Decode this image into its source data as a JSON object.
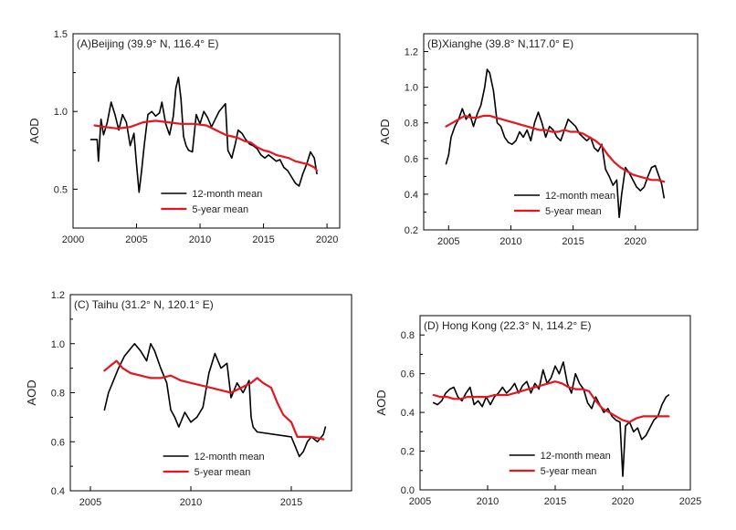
{
  "chart_data": [
    {
      "type": "line",
      "title": "(A)Beijing (39.9° N, 116.4° E)",
      "xlabel": "",
      "ylabel": "AOD",
      "xlim": [
        2000,
        2021
      ],
      "ylim": [
        0.25,
        1.5
      ],
      "xticks": [
        2000,
        2005,
        2010,
        2015,
        2020
      ],
      "yticks": [
        0.5,
        1.0,
        1.5
      ],
      "yticklabels": [
        "0.5",
        "1.0",
        "1.5"
      ],
      "legend": [
        "12-month mean",
        "5-year mean"
      ],
      "legend_position": "bottom-center",
      "series": [
        {
          "name": "12-month mean",
          "color": "#000000",
          "x": [
            2001.4,
            2001.9,
            2002.0,
            2002.2,
            2002.4,
            2002.7,
            2003.0,
            2003.3,
            2003.6,
            2003.9,
            2004.2,
            2004.5,
            2004.8,
            2005.0,
            2005.2,
            2005.4,
            2005.6,
            2005.9,
            2006.2,
            2006.5,
            2006.8,
            2007.0,
            2007.3,
            2007.6,
            2007.9,
            2008.1,
            2008.3,
            2008.5,
            2008.7,
            2008.9,
            2009.1,
            2009.4,
            2009.7,
            2010.0,
            2010.3,
            2010.6,
            2010.9,
            2011.2,
            2011.5,
            2011.8,
            2012.0,
            2012.2,
            2012.5,
            2012.8,
            2013.0,
            2013.3,
            2013.6,
            2013.9,
            2014.2,
            2014.5,
            2014.8,
            2015.1,
            2015.4,
            2015.7,
            2016.0,
            2016.3,
            2016.6,
            2016.9,
            2017.2,
            2017.5,
            2017.8,
            2018.1,
            2018.4,
            2018.7,
            2019.0,
            2019.2
          ],
          "y": [
            0.82,
            0.82,
            0.68,
            0.95,
            0.85,
            0.93,
            1.06,
            0.98,
            0.88,
            0.98,
            0.93,
            0.78,
            0.86,
            0.66,
            0.48,
            0.62,
            0.78,
            0.98,
            1.0,
            0.97,
            0.99,
            1.06,
            0.92,
            0.85,
            0.97,
            1.15,
            1.22,
            1.08,
            0.84,
            0.78,
            0.75,
            0.74,
            0.98,
            0.92,
            1.0,
            0.96,
            0.9,
            0.95,
            1.0,
            1.03,
            1.05,
            0.75,
            0.7,
            0.8,
            0.88,
            0.86,
            0.82,
            0.79,
            0.78,
            0.76,
            0.72,
            0.7,
            0.72,
            0.7,
            0.68,
            0.69,
            0.64,
            0.62,
            0.58,
            0.54,
            0.52,
            0.6,
            0.66,
            0.74,
            0.7,
            0.6
          ]
        },
        {
          "name": "5-year mean",
          "color": "#e8141e",
          "x": [
            2001.7,
            2002.5,
            2003.5,
            2004.5,
            2005.5,
            2006.5,
            2007.5,
            2008.5,
            2009.5,
            2010.5,
            2011.0,
            2011.5,
            2012.0,
            2012.5,
            2013.0,
            2013.5,
            2014.0,
            2014.5,
            2015.0,
            2015.5,
            2016.0,
            2016.5,
            2017.0,
            2017.5,
            2018.0,
            2018.5,
            2019.0,
            2019.2
          ],
          "y": [
            0.91,
            0.9,
            0.89,
            0.9,
            0.93,
            0.94,
            0.93,
            0.92,
            0.92,
            0.91,
            0.89,
            0.87,
            0.85,
            0.84,
            0.83,
            0.81,
            0.8,
            0.77,
            0.75,
            0.74,
            0.72,
            0.71,
            0.7,
            0.68,
            0.67,
            0.66,
            0.64,
            0.62
          ]
        }
      ]
    },
    {
      "type": "line",
      "title": "(B)Xianghe (39.8° N,117.0° E)",
      "xlabel": "",
      "ylabel": "AOD",
      "xlim": [
        2003,
        2025
      ],
      "ylim": [
        0.2,
        1.3
      ],
      "xticks": [
        2005,
        2010,
        2015,
        2020
      ],
      "yticks": [
        0.2,
        0.4,
        0.6,
        0.8,
        1.0,
        1.2
      ],
      "yticklabels": [
        "0.2",
        "0.4",
        "0.6",
        "0.8",
        "1.0",
        "1.2"
      ],
      "legend": [
        "12-month mean",
        "5-year mean"
      ],
      "legend_position": "bottom-center",
      "series": [
        {
          "name": "12-month mean",
          "color": "#000000",
          "x": [
            2004.8,
            2005.0,
            2005.2,
            2005.5,
            2005.8,
            2006.1,
            2006.4,
            2006.7,
            2007.0,
            2007.3,
            2007.6,
            2007.9,
            2008.1,
            2008.3,
            2008.6,
            2008.9,
            2009.2,
            2009.5,
            2009.8,
            2010.1,
            2010.4,
            2010.7,
            2011.0,
            2011.3,
            2011.6,
            2011.9,
            2012.2,
            2012.5,
            2012.8,
            2013.1,
            2013.4,
            2013.7,
            2014.0,
            2014.3,
            2014.6,
            2014.9,
            2015.2,
            2015.5,
            2015.8,
            2016.1,
            2016.4,
            2016.7,
            2017.0,
            2017.3,
            2017.6,
            2017.9,
            2018.2,
            2018.5,
            2018.7,
            2018.9,
            2019.2,
            2019.5,
            2019.8,
            2020.1,
            2020.4,
            2020.7,
            2021.0,
            2021.3,
            2021.6,
            2021.9,
            2022.1,
            2022.3
          ],
          "y": [
            0.57,
            0.62,
            0.72,
            0.78,
            0.82,
            0.88,
            0.82,
            0.85,
            0.78,
            0.85,
            0.9,
            1.0,
            1.1,
            1.08,
            0.98,
            0.8,
            0.78,
            0.72,
            0.69,
            0.68,
            0.7,
            0.75,
            0.72,
            0.76,
            0.7,
            0.8,
            0.86,
            0.8,
            0.72,
            0.78,
            0.76,
            0.72,
            0.7,
            0.76,
            0.82,
            0.8,
            0.78,
            0.74,
            0.72,
            0.7,
            0.72,
            0.66,
            0.64,
            0.68,
            0.54,
            0.5,
            0.45,
            0.48,
            0.27,
            0.4,
            0.55,
            0.52,
            0.48,
            0.44,
            0.42,
            0.44,
            0.5,
            0.55,
            0.56,
            0.5,
            0.46,
            0.38
          ]
        },
        {
          "name": "5-year mean",
          "color": "#e8141e",
          "x": [
            2004.8,
            2005.3,
            2005.8,
            2006.3,
            2006.8,
            2007.3,
            2007.8,
            2008.3,
            2008.8,
            2009.3,
            2009.8,
            2010.3,
            2010.8,
            2011.3,
            2011.8,
            2012.3,
            2012.8,
            2013.3,
            2013.8,
            2014.3,
            2014.8,
            2015.3,
            2015.8,
            2016.3,
            2016.8,
            2017.3,
            2017.8,
            2018.3,
            2018.8,
            2019.3,
            2019.8,
            2020.3,
            2020.8,
            2021.3,
            2021.8,
            2022.3
          ],
          "y": [
            0.78,
            0.8,
            0.82,
            0.84,
            0.83,
            0.83,
            0.84,
            0.84,
            0.83,
            0.82,
            0.81,
            0.8,
            0.79,
            0.78,
            0.77,
            0.76,
            0.76,
            0.75,
            0.75,
            0.76,
            0.75,
            0.75,
            0.74,
            0.72,
            0.7,
            0.67,
            0.62,
            0.58,
            0.55,
            0.53,
            0.51,
            0.5,
            0.49,
            0.48,
            0.48,
            0.47
          ]
        }
      ]
    },
    {
      "type": "line",
      "title": "(C)  Taihu (31.2° N, 120.1° E)",
      "xlabel": "",
      "ylabel": "AOD",
      "xlim": [
        2004,
        2018
      ],
      "ylim": [
        0.4,
        1.2
      ],
      "xticks": [
        2005,
        2010,
        2015
      ],
      "yticks": [
        0.4,
        0.6,
        0.8,
        1.0,
        1.2
      ],
      "yticklabels": [
        "0.4",
        "0.6",
        "0.8",
        "1.0",
        "1.2"
      ],
      "legend": [
        "12-month mean",
        "5-year mean"
      ],
      "legend_position": "bottom-center",
      "series": [
        {
          "name": "12-month mean",
          "color": "#000000",
          "x": [
            2005.7,
            2005.9,
            2006.1,
            2006.4,
            2006.7,
            2007.0,
            2007.2,
            2007.5,
            2007.8,
            2008.0,
            2008.2,
            2008.5,
            2008.8,
            2009.0,
            2009.2,
            2009.4,
            2009.7,
            2010.0,
            2010.3,
            2010.6,
            2010.9,
            2011.2,
            2011.5,
            2011.8,
            2012.0,
            2012.3,
            2012.6,
            2012.9,
            2013.0,
            2013.1,
            2013.3,
            2015.0,
            2015.2,
            2015.4,
            2015.6,
            2015.8,
            2016.0,
            2016.3,
            2016.6,
            2016.7
          ],
          "y": [
            0.73,
            0.8,
            0.84,
            0.9,
            0.95,
            0.98,
            1.0,
            0.97,
            0.93,
            1.0,
            0.97,
            0.9,
            0.84,
            0.73,
            0.7,
            0.66,
            0.72,
            0.68,
            0.7,
            0.74,
            0.88,
            0.96,
            0.9,
            0.92,
            0.78,
            0.84,
            0.8,
            0.85,
            0.7,
            0.66,
            0.64,
            0.62,
            0.58,
            0.54,
            0.56,
            0.6,
            0.62,
            0.6,
            0.63,
            0.66
          ]
        },
        {
          "name": "5-year mean",
          "color": "#e8141e",
          "x": [
            2005.7,
            2006.0,
            2006.3,
            2006.6,
            2007.0,
            2007.5,
            2008.0,
            2008.5,
            2009.0,
            2009.5,
            2010.0,
            2010.5,
            2011.0,
            2011.5,
            2012.0,
            2012.5,
            2013.0,
            2013.3,
            2013.6,
            2014.0,
            2014.3,
            2014.6,
            2015.0,
            2015.3,
            2016.0,
            2016.6
          ],
          "y": [
            0.89,
            0.91,
            0.93,
            0.9,
            0.88,
            0.87,
            0.86,
            0.86,
            0.87,
            0.85,
            0.84,
            0.83,
            0.82,
            0.81,
            0.8,
            0.82,
            0.84,
            0.86,
            0.84,
            0.82,
            0.76,
            0.71,
            0.68,
            0.62,
            0.62,
            0.61
          ]
        }
      ]
    },
    {
      "type": "line",
      "title": "(D) Hong Kong (22.3° N, 114.2° E)",
      "xlabel": "",
      "ylabel": "AOD",
      "xlim": [
        2005,
        2025
      ],
      "ylim": [
        0.0,
        0.9
      ],
      "xticks": [
        2005,
        2010,
        2015,
        2020,
        2025
      ],
      "yticks": [
        0.0,
        0.2,
        0.4,
        0.6,
        0.8
      ],
      "yticklabels": [
        "0.0",
        "0.2",
        "0.4",
        "0.6",
        "0.8"
      ],
      "legend": [
        "12-month mean",
        "5-year mean"
      ],
      "legend_position": "bottom-center",
      "series": [
        {
          "name": "12-month mean",
          "color": "#000000",
          "x": [
            2006.0,
            2006.3,
            2006.6,
            2006.9,
            2007.2,
            2007.5,
            2007.8,
            2008.1,
            2008.4,
            2008.7,
            2009.0,
            2009.3,
            2009.6,
            2009.9,
            2010.2,
            2010.5,
            2010.8,
            2011.1,
            2011.4,
            2011.7,
            2012.0,
            2012.3,
            2012.6,
            2012.9,
            2013.2,
            2013.5,
            2013.8,
            2014.1,
            2014.4,
            2014.7,
            2015.0,
            2015.3,
            2015.6,
            2015.9,
            2016.2,
            2016.5,
            2016.8,
            2017.1,
            2017.4,
            2017.7,
            2018.0,
            2018.3,
            2018.6,
            2018.9,
            2019.2,
            2019.5,
            2019.8,
            2020.0,
            2020.2,
            2020.5,
            2020.8,
            2021.1,
            2021.4,
            2021.7,
            2022.0,
            2022.3,
            2022.6,
            2022.9,
            2023.2,
            2023.4
          ],
          "y": [
            0.45,
            0.44,
            0.46,
            0.5,
            0.52,
            0.53,
            0.48,
            0.46,
            0.5,
            0.53,
            0.44,
            0.46,
            0.43,
            0.48,
            0.44,
            0.48,
            0.5,
            0.53,
            0.5,
            0.52,
            0.55,
            0.5,
            0.54,
            0.56,
            0.5,
            0.55,
            0.52,
            0.62,
            0.55,
            0.58,
            0.64,
            0.6,
            0.66,
            0.55,
            0.5,
            0.6,
            0.55,
            0.52,
            0.45,
            0.42,
            0.48,
            0.44,
            0.4,
            0.42,
            0.38,
            0.36,
            0.35,
            0.07,
            0.33,
            0.35,
            0.3,
            0.32,
            0.26,
            0.28,
            0.32,
            0.36,
            0.38,
            0.44,
            0.48,
            0.49
          ]
        },
        {
          "name": "5-year mean",
          "color": "#e8141e",
          "x": [
            2006.0,
            2006.5,
            2007.0,
            2007.5,
            2008.0,
            2008.5,
            2009.0,
            2009.5,
            2010.0,
            2010.5,
            2011.0,
            2011.5,
            2012.0,
            2012.5,
            2013.0,
            2013.5,
            2014.0,
            2014.5,
            2015.0,
            2015.5,
            2016.0,
            2016.5,
            2017.0,
            2017.5,
            2018.0,
            2018.5,
            2019.0,
            2019.5,
            2020.0,
            2020.5,
            2021.0,
            2021.5,
            2022.0,
            2022.5,
            2023.0,
            2023.4
          ],
          "y": [
            0.49,
            0.48,
            0.48,
            0.47,
            0.47,
            0.48,
            0.48,
            0.48,
            0.48,
            0.49,
            0.49,
            0.49,
            0.5,
            0.51,
            0.52,
            0.53,
            0.54,
            0.55,
            0.56,
            0.55,
            0.53,
            0.52,
            0.52,
            0.51,
            0.46,
            0.42,
            0.4,
            0.38,
            0.36,
            0.35,
            0.37,
            0.38,
            0.38,
            0.38,
            0.38,
            0.38
          ]
        }
      ]
    }
  ]
}
